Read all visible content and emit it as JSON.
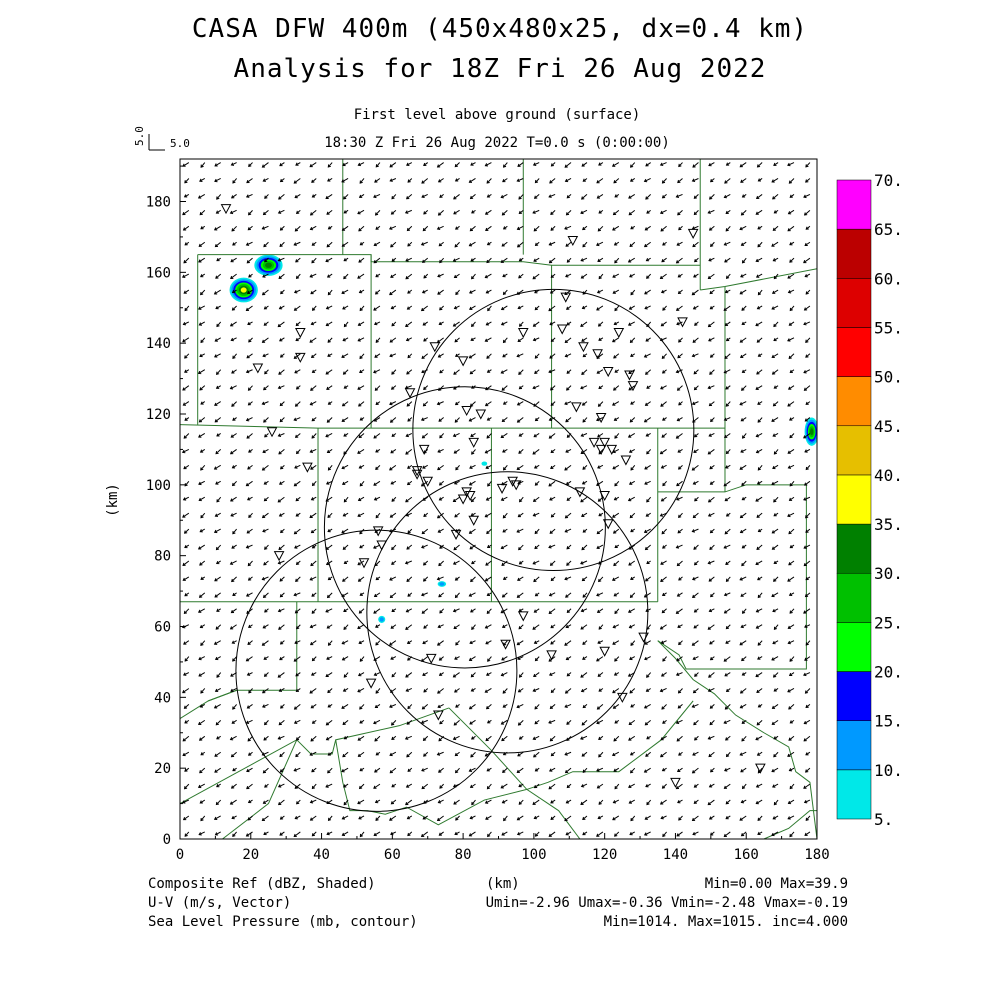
{
  "title_line1": "CASA DFW 400m (450x480x25, dx=0.4 km)",
  "title_line2": "Analysis for 18Z Fri 26 Aug 2022",
  "subtitle_line1": "First level above ground (surface)",
  "subtitle_line2": "18:30 Z Fri 26 Aug 2022    T=0.0 s (0:00:00)",
  "vector_key": {
    "value_x": "5.0",
    "value_y": "5.0"
  },
  "footer": {
    "left": [
      "Composite Ref (dBZ, Shaded)",
      "U-V (m/s, Vector)",
      "Sea Level Pressure (mb, contour)"
    ],
    "center": "(km)",
    "right": [
      "Min=0.00 Max=39.9",
      "Umin=-2.96 Umax=-0.36 Vmin=-2.48 Vmax=-0.19",
      "Min=1014. Max=1015. inc=4.000"
    ]
  },
  "colors": {
    "county_lines": "#2f7a2f",
    "radar_rings": "#000000",
    "colorbar": [
      "#00e8e8",
      "#0099ff",
      "#0000ff",
      "#00ff00",
      "#00c000",
      "#008000",
      "#ffff00",
      "#e6bf00",
      "#ff8c00",
      "#ff0000",
      "#dd0000",
      "#bb0000",
      "#ff00ff"
    ]
  },
  "chart_data": {
    "type": "heatmap",
    "title": "CASA DFW 400m (450x480x25, dx=0.4 km)",
    "subtitle": "Analysis for 18Z Fri 26 Aug 2022",
    "xlabel": "",
    "ylabel": "(km)",
    "xlim": [
      0,
      180
    ],
    "ylim": [
      0,
      192
    ],
    "xticks": [
      0,
      20,
      40,
      60,
      80,
      100,
      120,
      140,
      160,
      180
    ],
    "yticks": [
      0,
      20,
      40,
      60,
      80,
      100,
      120,
      140,
      160,
      180
    ],
    "colorbar": {
      "label": "Composite Ref (dBZ, Shaded)",
      "levels": [
        5,
        10,
        15,
        20,
        25,
        30,
        35,
        40,
        45,
        50,
        55,
        60,
        65,
        70
      ],
      "tick_labels": [
        "5.",
        "10.",
        "15.",
        "20.",
        "25.",
        "30.",
        "35.",
        "40.",
        "45.",
        "50.",
        "55.",
        "60.",
        "65.",
        "70."
      ]
    },
    "reflectivity_cells": [
      {
        "x": 18,
        "y": 155,
        "rx": 4,
        "ry": 3.5,
        "max_dbz": 39.9
      },
      {
        "x": 25,
        "y": 162,
        "rx": 4,
        "ry": 3,
        "max_dbz": 30
      },
      {
        "x": 178.5,
        "y": 115,
        "rx": 2,
        "ry": 4,
        "max_dbz": 30
      },
      {
        "x": 74,
        "y": 72,
        "rx": 1.2,
        "ry": 0.8,
        "max_dbz": 12
      },
      {
        "x": 57,
        "y": 62,
        "rx": 1,
        "ry": 1,
        "max_dbz": 12
      },
      {
        "x": 86,
        "y": 106,
        "rx": 0.8,
        "ry": 0.6,
        "max_dbz": 7
      }
    ],
    "wind": {
      "mean_u": -1.8,
      "mean_v": -1.3,
      "umin": -2.96,
      "umax": -0.36,
      "vmin": -2.48,
      "vmax": -0.19,
      "reference_vector": 5.0
    },
    "radar_rings": [
      {
        "cx": 105.5,
        "cy": 115.5,
        "r": 39.7
      },
      {
        "cx": 80.5,
        "cy": 88,
        "r": 39.7
      },
      {
        "cx": 92.5,
        "cy": 64,
        "r": 39.7
      },
      {
        "cx": 55.5,
        "cy": 47.5,
        "r": 39.7
      }
    ],
    "stations": [
      [
        13,
        178
      ],
      [
        111,
        169
      ],
      [
        145,
        171
      ],
      [
        109,
        153
      ],
      [
        142,
        146
      ],
      [
        34,
        143
      ],
      [
        97,
        143
      ],
      [
        108,
        144
      ],
      [
        124,
        143
      ],
      [
        72,
        139
      ],
      [
        34,
        136
      ],
      [
        80,
        135
      ],
      [
        114,
        139
      ],
      [
        118,
        137
      ],
      [
        22,
        133
      ],
      [
        121,
        132
      ],
      [
        127,
        131
      ],
      [
        128,
        128
      ],
      [
        65,
        126
      ],
      [
        112,
        122
      ],
      [
        81,
        121
      ],
      [
        85,
        120
      ],
      [
        119,
        119
      ],
      [
        26,
        115
      ],
      [
        83,
        112
      ],
      [
        117,
        112
      ],
      [
        120,
        112
      ],
      [
        122,
        110
      ],
      [
        119,
        110
      ],
      [
        126,
        107
      ],
      [
        36,
        105
      ],
      [
        69,
        110
      ],
      [
        67,
        104
      ],
      [
        67,
        103
      ],
      [
        70,
        101
      ],
      [
        81,
        98
      ],
      [
        82,
        97
      ],
      [
        80,
        96
      ],
      [
        91,
        99
      ],
      [
        94,
        101
      ],
      [
        95,
        100
      ],
      [
        113,
        98
      ],
      [
        120,
        97
      ],
      [
        28,
        80
      ],
      [
        56,
        87
      ],
      [
        57,
        83
      ],
      [
        52,
        78
      ],
      [
        78,
        86
      ],
      [
        83,
        90
      ],
      [
        121,
        89
      ],
      [
        97,
        63
      ],
      [
        131,
        57
      ],
      [
        92,
        55
      ],
      [
        71,
        51
      ],
      [
        105,
        52
      ],
      [
        120,
        53
      ],
      [
        54,
        44
      ],
      [
        73,
        35
      ],
      [
        125,
        40
      ],
      [
        140,
        16
      ],
      [
        164,
        20
      ]
    ],
    "county_boundaries": [
      [
        [
          46,
          192
        ],
        [
          46,
          165
        ]
      ],
      [
        [
          97,
          192
        ],
        [
          97,
          165
        ]
      ],
      [
        [
          147,
          192
        ],
        [
          147,
          155
        ]
      ],
      [
        [
          5,
          165
        ],
        [
          54,
          165
        ],
        [
          54,
          163
        ],
        [
          97,
          163
        ],
        [
          105,
          162
        ],
        [
          147,
          162
        ]
      ],
      [
        [
          5,
          165
        ],
        [
          5,
          117
        ]
      ],
      [
        [
          54,
          165
        ],
        [
          54,
          116
        ]
      ],
      [
        [
          105,
          162
        ],
        [
          105,
          116
        ]
      ],
      [
        [
          147,
          155
        ],
        [
          154,
          156
        ],
        [
          180,
          161
        ]
      ],
      [
        [
          154,
          156
        ],
        [
          154,
          98
        ]
      ],
      [
        [
          0,
          117
        ],
        [
          39,
          116
        ],
        [
          105,
          116
        ],
        [
          139,
          116
        ],
        [
          154,
          116
        ]
      ],
      [
        [
          39,
          116
        ],
        [
          39,
          67
        ]
      ],
      [
        [
          88,
          116
        ],
        [
          88,
          67
        ]
      ],
      [
        [
          135,
          116
        ],
        [
          135,
          67
        ]
      ],
      [
        [
          135,
          98
        ],
        [
          154,
          98
        ],
        [
          160,
          100
        ],
        [
          177,
          100
        ],
        [
          177,
          48
        ],
        [
          143,
          48
        ],
        [
          141,
          52
        ],
        [
          135,
          56
        ]
      ],
      [
        [
          0,
          67
        ],
        [
          33,
          67
        ],
        [
          88,
          67
        ],
        [
          135,
          67
        ]
      ],
      [
        [
          33,
          67
        ],
        [
          33,
          42
        ]
      ],
      [
        [
          0,
          34
        ],
        [
          8,
          39
        ],
        [
          16,
          42
        ],
        [
          33,
          42
        ]
      ],
      [
        [
          0,
          10
        ],
        [
          33,
          28
        ],
        [
          37,
          24
        ],
        [
          43,
          24
        ],
        [
          44,
          28
        ],
        [
          62,
          32
        ],
        [
          76,
          37
        ]
      ],
      [
        [
          8,
          39
        ],
        [
          16,
          42
        ]
      ],
      [
        [
          12,
          0
        ],
        [
          25,
          10
        ],
        [
          33,
          28
        ]
      ],
      [
        [
          44,
          28
        ],
        [
          46,
          16
        ],
        [
          48,
          8
        ],
        [
          53,
          8
        ],
        [
          58,
          7
        ],
        [
          64,
          9
        ],
        [
          73,
          4
        ],
        [
          86,
          11
        ],
        [
          98,
          14
        ],
        [
          104,
          16
        ],
        [
          111,
          19
        ],
        [
          124,
          19
        ],
        [
          136,
          28
        ],
        [
          145,
          39
        ]
      ],
      [
        [
          76,
          37
        ],
        [
          88,
          25
        ],
        [
          98,
          14
        ],
        [
          107,
          8
        ],
        [
          113,
          0
        ]
      ],
      [
        [
          135,
          56
        ],
        [
          140,
          51
        ],
        [
          145,
          45
        ],
        [
          151,
          41
        ],
        [
          157,
          35
        ],
        [
          165,
          30
        ],
        [
          172,
          26
        ],
        [
          174,
          19
        ],
        [
          178,
          16
        ],
        [
          180,
          0
        ]
      ],
      [
        [
          156,
          0
        ],
        [
          165,
          0
        ],
        [
          172,
          3
        ],
        [
          178,
          8
        ],
        [
          180,
          8
        ]
      ],
      [
        [
          130,
          0
        ],
        [
          135,
          0
        ]
      ]
    ]
  }
}
